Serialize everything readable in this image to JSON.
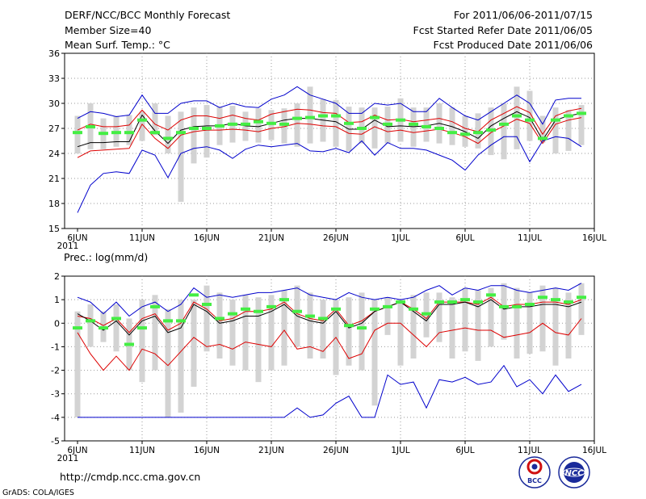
{
  "header": {
    "left": [
      "DERF/NCC/BCC Monthly Forecast",
      "Member Size=40",
      "Mean Surf. Temp.: °C"
    ],
    "right": [
      "For 2011/06/06-2011/07/15",
      "Fcst Started Refer Date 2011/06/05",
      "Fcst Produced Date 2011/06/06"
    ]
  },
  "footer": {
    "url": "http://cmdp.ncc.cma.gov.cn",
    "credit": "GrADS: COLA/IGES"
  },
  "logos": {
    "bcc": "BCC",
    "ncc": "NCC"
  },
  "colors": {
    "bar": "#d3d3d3",
    "marker": "#44ee44",
    "outer": "#0000cc",
    "inner": "#dd0000",
    "mean": "#000000",
    "grid": "#999999"
  },
  "chart_data": [
    {
      "type": "line",
      "title": "Mean Surf. Temp.: °C",
      "xlabel": "",
      "ylabel": "°C",
      "ylim": [
        15,
        36
      ],
      "yticks": [
        "15",
        "18",
        "21",
        "24",
        "27",
        "30",
        "33",
        "36"
      ],
      "grid": true,
      "x_days": 40,
      "xtick_labels": [
        "6JUN\n2011",
        "11JUN",
        "16JUN",
        "21JUN",
        "26JUN",
        "1JUL",
        "6JUL",
        "11JUL",
        "16JUL"
      ],
      "box_low": [
        24.0,
        24.5,
        24.5,
        24.8,
        25.0,
        25.5,
        26.2,
        24.0,
        18.2,
        22.8,
        23.5,
        25.0,
        25.3,
        25.5,
        25.3,
        25.6,
        25.2,
        24.8,
        25.2,
        25.4,
        24.8,
        24.3,
        25.2,
        24.6,
        25.2,
        25.4,
        24.8,
        25.4,
        25.2,
        25.0,
        24.8,
        24.6,
        23.8,
        23.3,
        24.5,
        25.5,
        25.3,
        24.0,
        24.3,
        25.0
      ],
      "box_high": [
        28.5,
        30.0,
        28.2,
        28.5,
        28.6,
        29.0,
        30.0,
        28.5,
        29.0,
        29.5,
        29.8,
        29.6,
        29.7,
        29.0,
        29.4,
        29.2,
        29.4,
        30.0,
        32.0,
        30.5,
        30.4,
        29.6,
        29.5,
        29.5,
        29.6,
        30.6,
        29.5,
        29.5,
        30.0,
        29.5,
        28.5,
        28.8,
        29.5,
        30.0,
        32.0,
        31.5,
        28.5,
        29.5,
        29.2,
        29.8
      ],
      "marker": [
        26.5,
        27.2,
        26.4,
        26.5,
        26.5,
        28.0,
        26.5,
        25.8,
        26.5,
        27.0,
        27.0,
        27.3,
        27.5,
        27.5,
        27.8,
        27.6,
        27.5,
        28.2,
        28.3,
        28.5,
        28.5,
        27.6,
        27.0,
        28.3,
        27.5,
        28.0,
        27.5,
        27.2,
        27.0,
        26.5,
        26.3,
        26.5,
        26.8,
        27.5,
        28.5,
        28.0,
        25.8,
        28.0,
        28.5,
        28.8
      ],
      "series": [
        {
          "name": "max",
          "color": "#0000cc",
          "values": [
            28.2,
            29.0,
            28.8,
            28.4,
            28.6,
            31.0,
            28.8,
            28.8,
            30.0,
            30.3,
            30.3,
            29.5,
            30.0,
            29.6,
            29.5,
            30.5,
            31.0,
            32.0,
            31.0,
            30.5,
            30.0,
            28.8,
            28.8,
            30.0,
            29.8,
            30.0,
            29.0,
            29.0,
            30.6,
            29.5,
            28.5,
            28.0,
            29.0,
            30.0,
            31.0,
            30.0,
            27.5,
            30.4,
            30.6,
            30.6
          ]
        },
        {
          "name": "upper",
          "color": "#dd0000",
          "values": [
            26.8,
            27.5,
            27.2,
            27.2,
            27.4,
            29.2,
            27.5,
            26.8,
            28.0,
            28.5,
            28.5,
            28.2,
            28.6,
            28.2,
            28.0,
            28.7,
            29.0,
            29.3,
            29.2,
            28.9,
            28.8,
            27.7,
            27.8,
            28.6,
            28.0,
            28.1,
            27.8,
            28.0,
            28.2,
            27.8,
            27.0,
            26.6,
            28.0,
            28.8,
            29.6,
            28.9,
            26.3,
            28.5,
            29.1,
            29.4
          ]
        },
        {
          "name": "mean",
          "color": "#000000",
          "values": [
            24.8,
            25.3,
            25.3,
            25.4,
            25.4,
            28.6,
            26.7,
            25.2,
            26.8,
            27.2,
            27.3,
            27.3,
            27.6,
            27.3,
            27.2,
            27.6,
            28.0,
            28.2,
            28.2,
            28.0,
            27.8,
            26.9,
            26.9,
            28.0,
            27.2,
            27.3,
            27.2,
            27.3,
            27.6,
            27.2,
            26.6,
            25.8,
            27.3,
            28.2,
            29.0,
            28.3,
            25.6,
            28.0,
            28.5,
            28.8
          ]
        },
        {
          "name": "lower",
          "color": "#dd0000",
          "values": [
            23.5,
            24.3,
            24.4,
            24.5,
            24.6,
            27.5,
            25.8,
            24.6,
            26.2,
            26.6,
            26.8,
            26.8,
            26.9,
            26.8,
            26.6,
            27.0,
            27.2,
            27.6,
            27.5,
            27.3,
            27.2,
            26.4,
            26.3,
            27.2,
            26.6,
            26.8,
            26.5,
            26.7,
            26.9,
            26.5,
            26.0,
            25.2,
            26.5,
            27.3,
            28.1,
            27.6,
            25.2,
            27.5,
            28.0,
            28.3
          ]
        },
        {
          "name": "min",
          "color": "#0000cc",
          "values": [
            16.9,
            20.2,
            21.6,
            21.8,
            21.6,
            24.4,
            23.8,
            21.1,
            24.0,
            24.6,
            24.8,
            24.4,
            23.4,
            24.5,
            25.0,
            24.8,
            25.0,
            25.2,
            24.3,
            24.2,
            24.6,
            24.1,
            25.5,
            23.8,
            25.3,
            24.6,
            24.6,
            24.4,
            23.8,
            23.2,
            22.0,
            23.8,
            25.0,
            26.0,
            26.0,
            23.0,
            25.5,
            26.0,
            25.8,
            24.8
          ]
        }
      ]
    },
    {
      "type": "line",
      "title": "Prec.: log(mm/d)",
      "xlabel": "",
      "ylabel": "log(mm/d)",
      "ylim": [
        -5,
        2
      ],
      "yticks": [
        "-5",
        "-4",
        "-3",
        "-2",
        "-1",
        "0",
        "1",
        "2"
      ],
      "grid": true,
      "x_days": 40,
      "xtick_labels": [
        "6JUN\n2011",
        "11JUN",
        "16JUN",
        "21JUN",
        "26JUN",
        "1JUL",
        "6JUL",
        "11JUL",
        "16JUL"
      ],
      "box_low": [
        -4.0,
        -1.0,
        -0.8,
        -1.2,
        -2.0,
        -2.5,
        -2.0,
        -4.0,
        -3.8,
        -2.7,
        -1.2,
        -1.5,
        -1.8,
        -2.0,
        -2.5,
        -2.0,
        -1.8,
        -1.0,
        -1.5,
        -1.5,
        -2.2,
        -1.8,
        -2.0,
        -3.5,
        -0.5,
        -1.8,
        -1.5,
        -0.6,
        -0.8,
        -1.5,
        -1.2,
        -1.6,
        -1.0,
        -0.7,
        -1.5,
        -1.3,
        -1.2,
        -1.8,
        -1.5,
        -0.5
      ],
      "box_high": [
        0.5,
        0.8,
        0.5,
        0.8,
        0.2,
        1.0,
        1.2,
        0.6,
        1.0,
        1.0,
        1.6,
        1.3,
        1.0,
        1.2,
        1.1,
        1.2,
        1.4,
        1.6,
        1.3,
        1.0,
        1.0,
        1.1,
        1.3,
        1.0,
        1.1,
        1.0,
        1.2,
        1.3,
        1.3,
        1.1,
        1.5,
        1.4,
        1.5,
        1.7,
        1.5,
        1.3,
        1.6,
        1.5,
        1.3,
        1.7
      ],
      "marker": [
        -0.2,
        0.1,
        -0.2,
        0.2,
        -0.9,
        -0.2,
        0.7,
        0.1,
        0.1,
        1.2,
        0.8,
        0.2,
        0.4,
        0.6,
        0.5,
        0.7,
        1.0,
        0.5,
        0.3,
        0.2,
        0.6,
        -0.1,
        -0.2,
        0.6,
        0.7,
        0.9,
        0.6,
        0.4,
        0.9,
        0.9,
        1.0,
        0.9,
        1.2,
        0.7,
        0.7,
        0.8,
        1.1,
        1.0,
        0.9,
        1.1
      ],
      "series": [
        {
          "name": "max",
          "color": "#0000cc",
          "values": [
            1.1,
            0.9,
            0.4,
            0.9,
            0.3,
            0.7,
            0.9,
            0.5,
            0.8,
            1.5,
            1.1,
            1.2,
            1.1,
            1.2,
            1.3,
            1.3,
            1.4,
            1.5,
            1.2,
            1.1,
            1.0,
            1.3,
            1.1,
            1.0,
            1.1,
            1.0,
            1.1,
            1.4,
            1.6,
            1.2,
            1.5,
            1.4,
            1.6,
            1.6,
            1.4,
            1.3,
            1.4,
            1.5,
            1.4,
            1.7
          ]
        },
        {
          "name": "upper",
          "color": "#dd0000",
          "values": [
            0.3,
            0.2,
            -0.1,
            0.2,
            -0.4,
            0.2,
            0.4,
            -0.3,
            0.0,
            0.9,
            0.6,
            0.1,
            0.2,
            0.5,
            0.5,
            0.6,
            0.9,
            0.4,
            0.2,
            0.1,
            0.6,
            -0.1,
            0.1,
            0.5,
            0.7,
            0.9,
            0.6,
            0.2,
            0.9,
            0.9,
            0.9,
            0.8,
            1.1,
            0.7,
            0.8,
            0.8,
            0.9,
            0.9,
            0.8,
            1.0
          ]
        },
        {
          "name": "mean",
          "color": "#000000",
          "values": [
            0.4,
            0.1,
            -0.3,
            0.1,
            -0.5,
            0.1,
            0.3,
            -0.4,
            -0.2,
            0.8,
            0.5,
            0.0,
            0.1,
            0.3,
            0.3,
            0.5,
            0.8,
            0.3,
            0.1,
            0.0,
            0.5,
            -0.2,
            0.0,
            0.5,
            0.7,
            0.9,
            0.5,
            0.1,
            0.8,
            0.8,
            0.9,
            0.7,
            1.0,
            0.6,
            0.7,
            0.7,
            0.8,
            0.8,
            0.7,
            0.9
          ]
        },
        {
          "name": "lower",
          "color": "#dd0000",
          "values": [
            -0.4,
            -1.3,
            -2.0,
            -1.4,
            -2.0,
            -1.1,
            -1.3,
            -1.8,
            -1.2,
            -0.6,
            -1.0,
            -0.9,
            -1.1,
            -0.8,
            -0.9,
            -1.0,
            -0.3,
            -1.1,
            -1.0,
            -1.2,
            -0.6,
            -1.5,
            -1.3,
            -0.3,
            0.0,
            0.0,
            -0.5,
            -1.0,
            -0.4,
            -0.3,
            -0.2,
            -0.3,
            -0.3,
            -0.6,
            -0.5,
            -0.4,
            0.0,
            -0.4,
            -0.5,
            0.2
          ]
        },
        {
          "name": "min",
          "color": "#0000cc",
          "values": [
            -4.0,
            -4.0,
            -4.0,
            -4.0,
            -4.0,
            -4.0,
            -4.0,
            -4.0,
            -4.0,
            -4.0,
            -4.0,
            -4.0,
            -4.0,
            -4.0,
            -4.0,
            -4.0,
            -4.0,
            -3.6,
            -4.0,
            -3.9,
            -3.4,
            -3.1,
            -4.0,
            -4.0,
            -2.2,
            -2.6,
            -2.5,
            -3.6,
            -2.4,
            -2.5,
            -2.3,
            -2.6,
            -2.5,
            -1.8,
            -2.7,
            -2.4,
            -3.0,
            -2.2,
            -2.9,
            -2.6
          ]
        }
      ]
    }
  ]
}
